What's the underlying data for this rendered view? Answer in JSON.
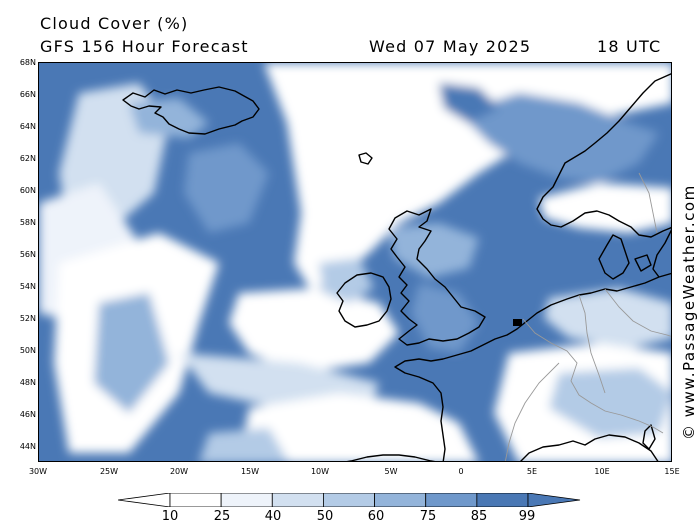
{
  "header": {
    "title": "Cloud Cover (%)",
    "subtitle": "GFS 156 Hour Forecast",
    "date": "Wed 07 May 2025",
    "time": "18 UTC"
  },
  "credit": "© www.PassageWeather.com",
  "axes": {
    "lat_labels": [
      "68N",
      "66N",
      "64N",
      "62N",
      "60N",
      "58N",
      "56N",
      "54N",
      "52N",
      "50N",
      "48N",
      "46N",
      "44N"
    ],
    "lon_labels": [
      "30W",
      "25W",
      "20W",
      "15W",
      "10W",
      "5W",
      "0",
      "5E",
      "10E",
      "15E"
    ]
  },
  "legend": {
    "labels": [
      "10",
      "25",
      "40",
      "50",
      "60",
      "75",
      "85",
      "99"
    ],
    "colors": [
      "#ffffff",
      "#eef3fa",
      "#d2e0f0",
      "#b3cbe6",
      "#93b4da",
      "#6f98cb",
      "#4a78b5"
    ]
  },
  "colors": {
    "clear": "#ffffff",
    "overcast": "#4a78b5",
    "coastline": "#000000",
    "borders": "#999999"
  }
}
